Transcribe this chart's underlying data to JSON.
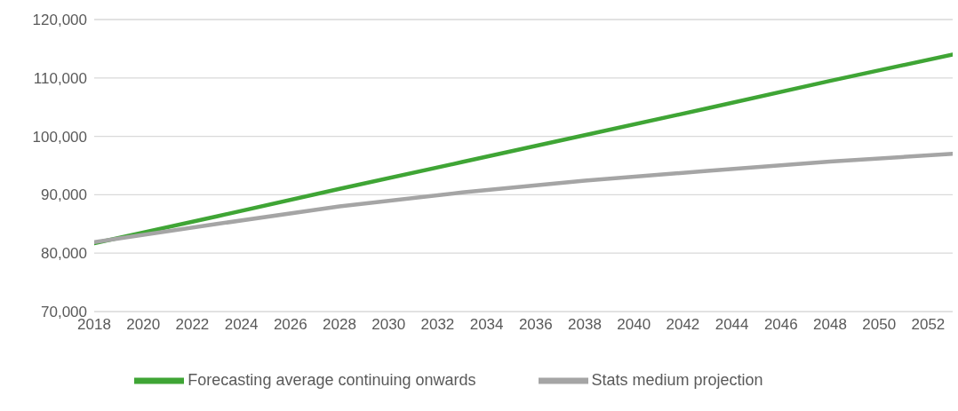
{
  "chart_data": {
    "type": "line",
    "x": [
      2018,
      2023,
      2028,
      2033,
      2038,
      2043,
      2048,
      2053
    ],
    "series": [
      {
        "name": "Forecasting average continuing onwards",
        "color": "#3fa535",
        "values": [
          81700,
          86300,
          91000,
          95600,
          100200,
          104800,
          109500,
          114000
        ]
      },
      {
        "name": "Stats medium projection",
        "color": "#a5a5a5",
        "values": [
          81900,
          85000,
          88000,
          90400,
          92400,
          94100,
          95700,
          97000
        ]
      }
    ],
    "xlim": [
      2018,
      2053
    ],
    "xticks": [
      2018,
      2020,
      2022,
      2024,
      2026,
      2028,
      2030,
      2032,
      2034,
      2036,
      2038,
      2040,
      2042,
      2044,
      2046,
      2048,
      2050,
      2052
    ],
    "ylim": [
      70000,
      120000
    ],
    "yticks": [
      {
        "value": 70000,
        "label": "70,000"
      },
      {
        "value": 80000,
        "label": "80,000"
      },
      {
        "value": 90000,
        "label": "90,000"
      },
      {
        "value": 100000,
        "label": "100,000"
      },
      {
        "value": 110000,
        "label": "110,000"
      },
      {
        "value": 120000,
        "label": "120,000"
      }
    ],
    "grid": "y",
    "legend": "bottom",
    "marker": "none",
    "line_style": "solid"
  }
}
